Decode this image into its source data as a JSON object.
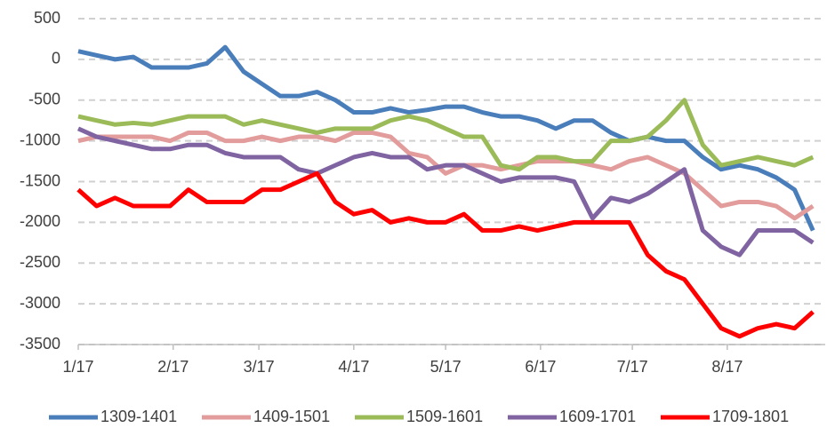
{
  "chart_data": {
    "type": "line",
    "x": [
      0,
      6,
      12,
      18,
      24,
      30,
      36,
      42,
      48,
      54,
      60,
      66,
      72,
      78,
      84,
      90,
      96,
      102,
      108,
      114,
      120,
      126,
      132,
      138,
      144,
      150,
      156,
      162,
      168,
      174,
      180,
      186,
      192,
      198,
      204,
      210,
      216,
      222,
      228,
      234,
      240
    ],
    "xlim": [
      0,
      244
    ],
    "xticks": [
      {
        "value": 0,
        "label": "1/17"
      },
      {
        "value": 31,
        "label": "2/17"
      },
      {
        "value": 59,
        "label": "3/17"
      },
      {
        "value": 90,
        "label": "4/17"
      },
      {
        "value": 120,
        "label": "5/17"
      },
      {
        "value": 151,
        "label": "6/17"
      },
      {
        "value": 181,
        "label": "7/17"
      },
      {
        "value": 212,
        "label": "8/17"
      }
    ],
    "ylim": [
      -3500,
      500
    ],
    "yticks": [
      500,
      0,
      -500,
      -1000,
      -1500,
      -2000,
      -2500,
      -3000,
      -3500
    ],
    "grid": true,
    "legend": "bottom",
    "series": [
      {
        "name": "1309-1401",
        "color": "#4a7ebb",
        "values": [
          100,
          50,
          0,
          30,
          -100,
          -100,
          -100,
          -50,
          150,
          -150,
          -300,
          -450,
          -450,
          -400,
          -500,
          -650,
          -650,
          -600,
          -650,
          -620,
          -580,
          -580,
          -650,
          -700,
          -700,
          -750,
          -850,
          -750,
          -750,
          -900,
          -1000,
          -950,
          -1000,
          -1000,
          -1200,
          -1350,
          -1300,
          -1350,
          -1450,
          -1600,
          -2100
        ]
      },
      {
        "name": "1409-1501",
        "color": "#e39c9c",
        "values": [
          -1000,
          -950,
          -950,
          -950,
          -950,
          -1000,
          -900,
          -900,
          -1000,
          -1000,
          -950,
          -1000,
          -950,
          -950,
          -1000,
          -900,
          -900,
          -950,
          -1150,
          -1200,
          -1400,
          -1300,
          -1300,
          -1350,
          -1300,
          -1250,
          -1250,
          -1250,
          -1300,
          -1350,
          -1250,
          -1200,
          -1300,
          -1400,
          -1600,
          -1800,
          -1750,
          -1750,
          -1800,
          -1950,
          -1800
        ]
      },
      {
        "name": "1509-1601",
        "color": "#9bbb59",
        "values": [
          -700,
          -750,
          -800,
          -780,
          -800,
          -750,
          -700,
          -700,
          -700,
          -800,
          -750,
          -800,
          -850,
          -900,
          -850,
          -850,
          -850,
          -750,
          -700,
          -750,
          -850,
          -950,
          -950,
          -1300,
          -1350,
          -1200,
          -1200,
          -1250,
          -1250,
          -1000,
          -1000,
          -950,
          -750,
          -500,
          -1050,
          -1300,
          -1250,
          -1200,
          -1250,
          -1300,
          -1200
        ]
      },
      {
        "name": "1609-1701",
        "color": "#8064a2",
        "values": [
          -850,
          -950,
          -1000,
          -1050,
          -1100,
          -1100,
          -1050,
          -1050,
          -1150,
          -1200,
          -1200,
          -1200,
          -1350,
          -1400,
          -1300,
          -1200,
          -1150,
          -1200,
          -1200,
          -1350,
          -1300,
          -1300,
          -1400,
          -1500,
          -1450,
          -1450,
          -1450,
          -1500,
          -1950,
          -1700,
          -1750,
          -1650,
          -1500,
          -1350,
          -2100,
          -2300,
          -2400,
          -2100,
          -2100,
          -2100,
          -2250
        ]
      },
      {
        "name": "1709-1801",
        "color": "#ff0000",
        "values": [
          -1600,
          -1800,
          -1700,
          -1800,
          -1800,
          -1800,
          -1600,
          -1750,
          -1750,
          -1750,
          -1600,
          -1600,
          -1500,
          -1400,
          -1750,
          -1900,
          -1850,
          -2000,
          -1950,
          -2000,
          -2000,
          -1900,
          -2100,
          -2100,
          -2050,
          -2100,
          -2050,
          -2000,
          -2000,
          -2000,
          -2000,
          -2400,
          -2600,
          -2700,
          -3000,
          -3300,
          -3400,
          -3300,
          -3250,
          -3300,
          -3100
        ]
      }
    ]
  }
}
